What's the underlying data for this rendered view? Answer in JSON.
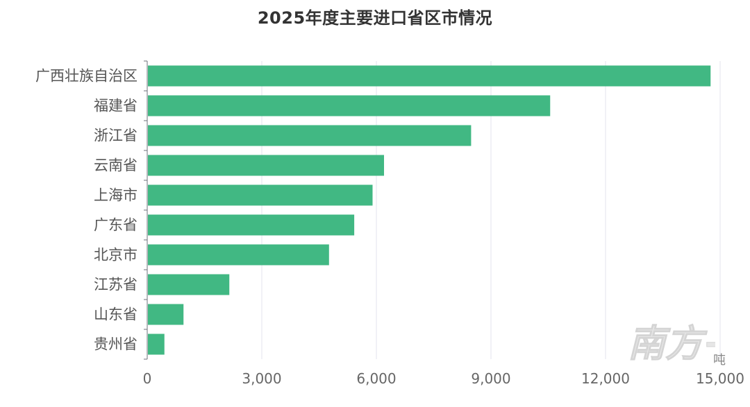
{
  "chart_data": {
    "type": "bar",
    "orientation": "horizontal",
    "title": "2025年度主要进口省区市情况",
    "categories": [
      "广西壮族自治区",
      "福建省",
      "浙江省",
      "云南省",
      "上海市",
      "广东省",
      "北京市",
      "江苏省",
      "山东省",
      "贵州省"
    ],
    "values": [
      14750,
      10550,
      8480,
      6200,
      5900,
      5420,
      4760,
      2150,
      950,
      450
    ],
    "xlim": [
      0,
      15000
    ],
    "xticks": [
      0,
      3000,
      6000,
      9000,
      12000,
      15000
    ],
    "xtick_labels": [
      "0",
      "3,000",
      "6,000",
      "9,000",
      "12,000",
      "15,000"
    ],
    "unit": "吨",
    "bar_color": "#41b883",
    "grid": true
  },
  "watermark": {
    "text": "南方+"
  }
}
